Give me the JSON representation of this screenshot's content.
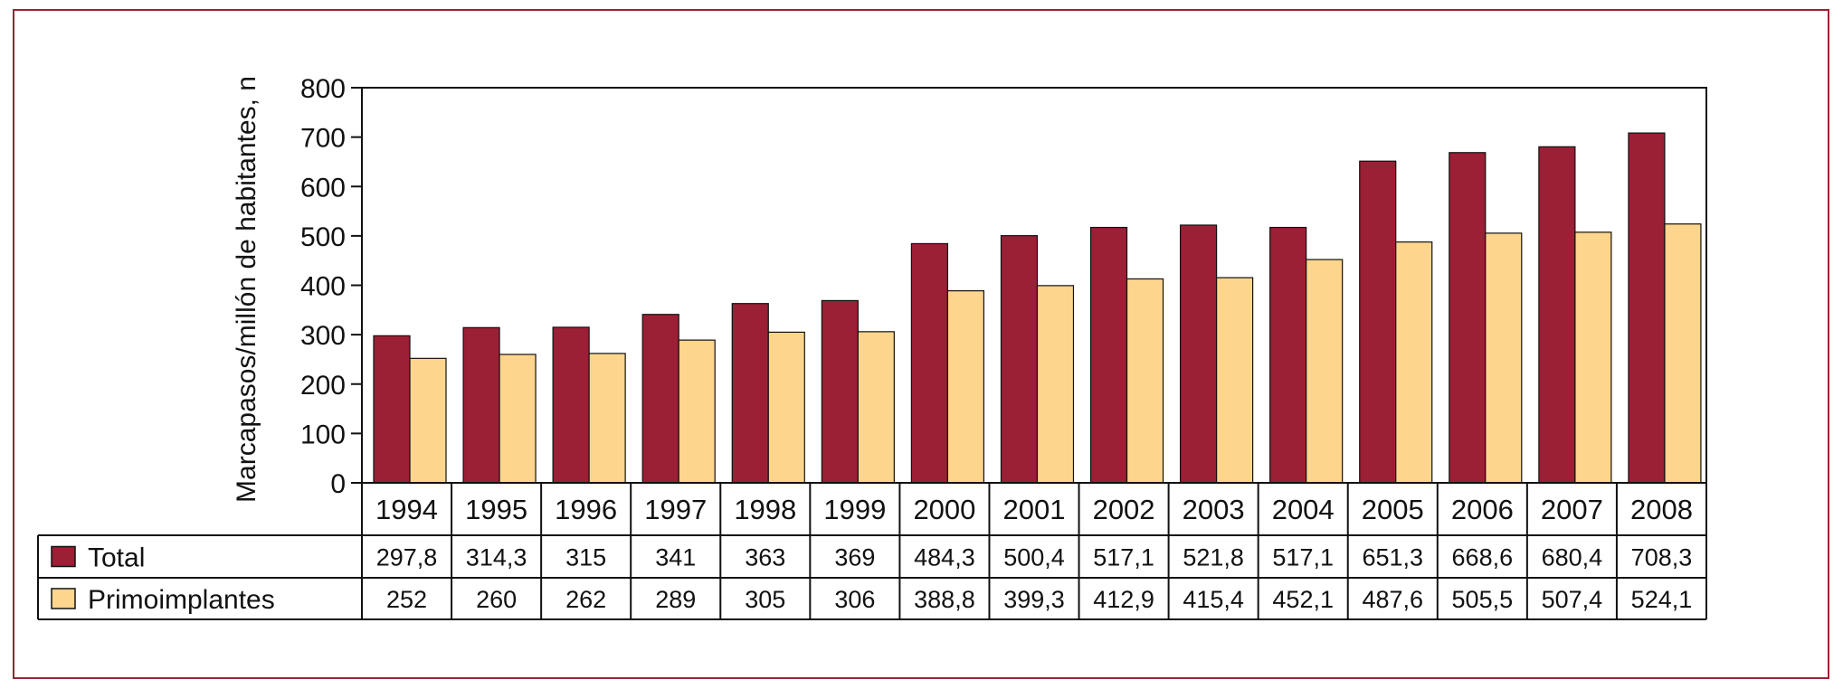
{
  "chart_data": {
    "type": "bar",
    "ylabel": "Marcapasos/millón de habitantes, n",
    "ylim": [
      0,
      800
    ],
    "yticks": [
      "0",
      "100",
      "200",
      "300",
      "400",
      "500",
      "600",
      "700",
      "800"
    ],
    "categories": [
      "1994",
      "1995",
      "1996",
      "1997",
      "1998",
      "1999",
      "2000",
      "2001",
      "2002",
      "2003",
      "2004",
      "2005",
      "2006",
      "2007",
      "2008"
    ],
    "series": [
      {
        "name": "Total",
        "color": "#9b1f35",
        "values": [
          297.8,
          314.3,
          315,
          341,
          363,
          369,
          484.3,
          500.4,
          517.1,
          521.8,
          517.1,
          651.3,
          668.6,
          680.4,
          708.3
        ],
        "labels": [
          "297,8",
          "314,3",
          "315",
          "341",
          "363",
          "369",
          "484,3",
          "500,4",
          "517,1",
          "521,8",
          "517,1",
          "651,3",
          "668,6",
          "680,4",
          "708,3"
        ]
      },
      {
        "name": "Primoimplantes",
        "color": "#fdd58d",
        "values": [
          252,
          260,
          262,
          289,
          305,
          306,
          388.8,
          399.3,
          412.9,
          415.4,
          452.1,
          487.6,
          505.5,
          507.4,
          524.1
        ],
        "labels": [
          "252",
          "260",
          "262",
          "289",
          "305",
          "306",
          "388,8",
          "399,3",
          "412,9",
          "415,4",
          "452,1",
          "487,6",
          "505,5",
          "507,4",
          "524,1"
        ]
      }
    ],
    "legend": "data-table",
    "grid": false
  }
}
